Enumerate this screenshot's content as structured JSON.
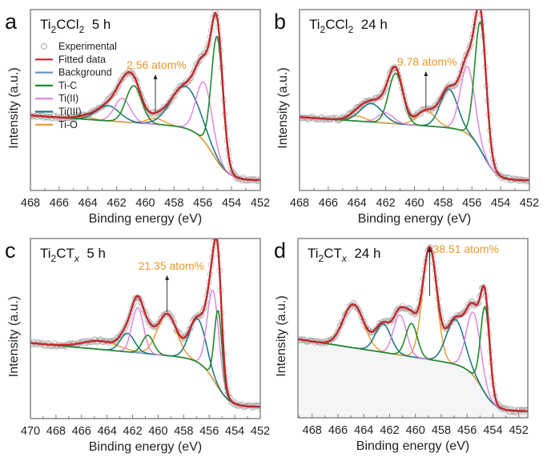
{
  "colors": {
    "experimental": "#a8a0a0",
    "fitted": "#c0282c",
    "background": "#6b95c4",
    "ti_c": "#1f8a2a",
    "ti_ii": "#e07fe0",
    "ti_iii": "#1f7a80",
    "ti_o": "#e49a2a",
    "annotation": "#e8972a",
    "axis": "#777777"
  },
  "legend": [
    {
      "key": "experimental",
      "label": "Experimental",
      "marker": "circle"
    },
    {
      "key": "fitted",
      "label": "Fitted data",
      "marker": "line"
    },
    {
      "key": "background",
      "label": "Background",
      "marker": "line"
    },
    {
      "key": "ti_c",
      "label": "Ti-C",
      "marker": "line"
    },
    {
      "key": "ti_ii",
      "label": "Ti(II)",
      "marker": "line"
    },
    {
      "key": "ti_iii",
      "label": "Ti(III)",
      "marker": "line"
    },
    {
      "key": "ti_o",
      "label": "Ti-O",
      "marker": "line"
    }
  ],
  "chart_data": [
    {
      "id": "a",
      "type": "line",
      "panel_letter": "a",
      "title": {
        "base": "Ti",
        "sub1": "2",
        "mid": "CCl",
        "sub2": "2",
        "tail": "  5 h",
        "italic_sub2": false
      },
      "xlabel": "Binding energy (eV)",
      "ylabel": "Intensity (a.u.)",
      "xlim": [
        468,
        452
      ],
      "ylim": [
        0,
        1
      ],
      "xticks": [
        468,
        466,
        464,
        462,
        460,
        458,
        456,
        454,
        452
      ],
      "legend_position": "top-left",
      "annotation": {
        "text": "2.56 atom%",
        "points_to_x": 459.3
      },
      "background": {
        "high_level": 0.37,
        "low_level": 0.06,
        "step_center": 455.3,
        "step_width": 1.3,
        "slope": 0.006
      },
      "components": {
        "ti_c": [
          {
            "center": 455.0,
            "height": 0.74,
            "width": 0.4
          },
          {
            "center": 460.8,
            "height": 0.22,
            "width": 0.55
          }
        ],
        "ti_ii": [
          {
            "center": 455.9,
            "height": 0.35,
            "width": 0.55
          },
          {
            "center": 461.6,
            "height": 0.14,
            "width": 0.55
          }
        ],
        "ti_iii": [
          {
            "center": 457.2,
            "height": 0.25,
            "width": 1.0
          },
          {
            "center": 462.6,
            "height": 0.09,
            "width": 0.8
          }
        ],
        "ti_o": [
          {
            "center": 459.3,
            "height": 0.035,
            "width": 0.6
          },
          {
            "center": 464.3,
            "height": 0.015,
            "width": 0.6
          }
        ]
      }
    },
    {
      "id": "b",
      "type": "line",
      "panel_letter": "b",
      "title": {
        "base": "Ti",
        "sub1": "2",
        "mid": "CCl",
        "sub2": "2",
        "tail": "  24 h",
        "italic_sub2": false
      },
      "xlabel": "Binding energy (eV)",
      "ylabel": "Intensity (a.u.)",
      "xlim": [
        468,
        452
      ],
      "ylim": [
        0,
        1
      ],
      "xticks": [
        468,
        466,
        464,
        462,
        460,
        458,
        456,
        454,
        452
      ],
      "legend_position": "none",
      "annotation": {
        "text": "9.78 atom%",
        "points_to_x": 459.2
      },
      "background": {
        "high_level": 0.36,
        "low_level": 0.06,
        "step_center": 455.2,
        "step_width": 1.1,
        "slope": 0.006
      },
      "components": {
        "ti_c": [
          {
            "center": 455.4,
            "height": 0.76,
            "width": 0.4
          },
          {
            "center": 461.3,
            "height": 0.3,
            "width": 0.5
          }
        ],
        "ti_ii": [
          {
            "center": 456.3,
            "height": 0.4,
            "width": 0.5
          },
          {
            "center": 462.0,
            "height": 0.06,
            "width": 0.55
          }
        ],
        "ti_iii": [
          {
            "center": 457.6,
            "height": 0.23,
            "width": 0.6
          },
          {
            "center": 463.0,
            "height": 0.11,
            "width": 0.75
          }
        ],
        "ti_o": [
          {
            "center": 459.2,
            "height": 0.09,
            "width": 0.65
          },
          {
            "center": 464.0,
            "height": 0.03,
            "width": 0.6
          }
        ]
      }
    },
    {
      "id": "c",
      "type": "line",
      "panel_letter": "c",
      "title": {
        "base": "Ti",
        "sub1": "2",
        "mid": "CT",
        "sub2": "x",
        "tail": "  5 h",
        "italic_sub2": true
      },
      "xlabel": "Binding energy (eV)",
      "ylabel": "Intensity (a.u.)",
      "xlim": [
        470,
        452
      ],
      "ylim": [
        0,
        1
      ],
      "xticks": [
        470,
        468,
        466,
        464,
        462,
        460,
        458,
        456,
        454,
        452
      ],
      "legend_position": "none",
      "annotation": {
        "text": "21.35 atom%",
        "points_to_x": 459.3
      },
      "background": {
        "high_level": 0.35,
        "low_level": 0.07,
        "step_center": 455.5,
        "step_width": 1.3,
        "slope": 0.007
      },
      "components": {
        "ti_c": [
          {
            "center": 455.3,
            "height": 0.46,
            "width": 0.3
          },
          {
            "center": 460.8,
            "height": 0.11,
            "width": 0.45
          }
        ],
        "ti_ii": [
          {
            "center": 455.7,
            "height": 0.53,
            "width": 0.45
          },
          {
            "center": 461.6,
            "height": 0.27,
            "width": 0.45
          }
        ],
        "ti_iii": [
          {
            "center": 456.9,
            "height": 0.26,
            "width": 0.65
          },
          {
            "center": 462.4,
            "height": 0.11,
            "width": 0.55
          }
        ],
        "ti_o": [
          {
            "center": 459.3,
            "height": 0.25,
            "width": 0.75
          },
          {
            "center": 464.5,
            "height": 0.05,
            "width": 1.4
          }
        ]
      }
    },
    {
      "id": "d",
      "type": "line",
      "panel_letter": "d",
      "title": {
        "base": "Ti",
        "sub1": "2",
        "mid": "CT",
        "sub2": "x",
        "tail": "  24 h",
        "italic_sub2": true
      },
      "xlabel": "Binding energy (eV)",
      "ylabel": "Intensity (a.u.)",
      "xlim": [
        469.1,
        451.3
      ],
      "ylim": [
        0,
        1
      ],
      "xticks": [
        468,
        466,
        464,
        462,
        460,
        458,
        456,
        454,
        452
      ],
      "legend_position": "none",
      "annotation": {
        "text": "38.51 atom%",
        "points_to_x": 458.9
      },
      "background": {
        "high_level": 0.3,
        "low_level": 0.04,
        "step_center": 454.8,
        "step_width": 1.2,
        "slope": 0.012
      },
      "components": {
        "ti_c": [
          {
            "center": 454.6,
            "height": 0.52,
            "width": 0.35
          },
          {
            "center": 460.3,
            "height": 0.2,
            "width": 0.45
          }
        ],
        "ti_ii": [
          {
            "center": 455.5,
            "height": 0.38,
            "width": 0.55
          },
          {
            "center": 461.2,
            "height": 0.24,
            "width": 0.5
          }
        ],
        "ti_iii": [
          {
            "center": 456.9,
            "height": 0.27,
            "width": 0.7
          },
          {
            "center": 462.5,
            "height": 0.17,
            "width": 0.6
          }
        ],
        "ti_o": [
          {
            "center": 458.9,
            "height": 0.67,
            "width": 0.55
          },
          {
            "center": 464.8,
            "height": 0.26,
            "width": 0.8
          }
        ]
      }
    }
  ]
}
